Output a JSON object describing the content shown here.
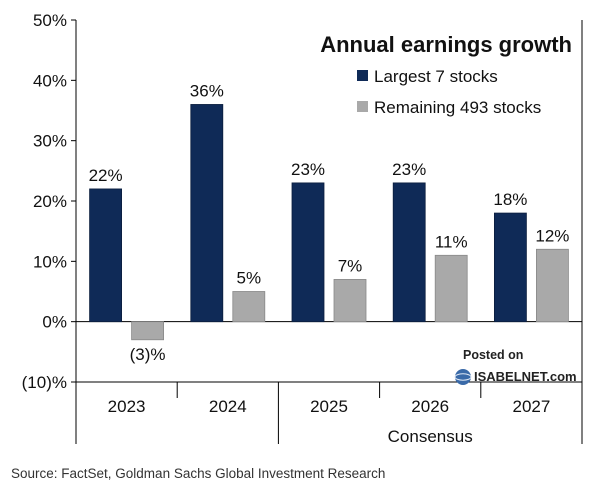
{
  "chart_data": {
    "type": "bar",
    "title": "Annual earnings growth",
    "categories": [
      "2023",
      "2024",
      "2025",
      "2026",
      "2027"
    ],
    "series": [
      {
        "name": "Largest 7 stocks",
        "color": "#0f2a57",
        "values": [
          22,
          36,
          23,
          23,
          18
        ],
        "labels": [
          "22%",
          "36%",
          "23%",
          "23%",
          "18%"
        ]
      },
      {
        "name": "Remaining 493 stocks",
        "color": "#a9a9a9",
        "values": [
          -3,
          5,
          7,
          11,
          12
        ],
        "labels": [
          "(3)%",
          "5%",
          "7%",
          "11%",
          "12%"
        ]
      }
    ],
    "ylim": [
      -10,
      50
    ],
    "yticks": [
      50,
      40,
      30,
      20,
      10,
      0,
      -10
    ],
    "ytick_labels": [
      "50%",
      "40%",
      "30%",
      "20%",
      "10%",
      "0%",
      "(10)%"
    ],
    "group_label": "Consensus",
    "group_categories": [
      "2025",
      "2026",
      "2027"
    ],
    "legend_position": "top-right",
    "xlabel": "",
    "ylabel": ""
  },
  "source": "Source: FactSet, Goldman Sachs Global Investment Research",
  "watermark": {
    "line1": "Posted on",
    "line2": "ISABELNET.com"
  }
}
